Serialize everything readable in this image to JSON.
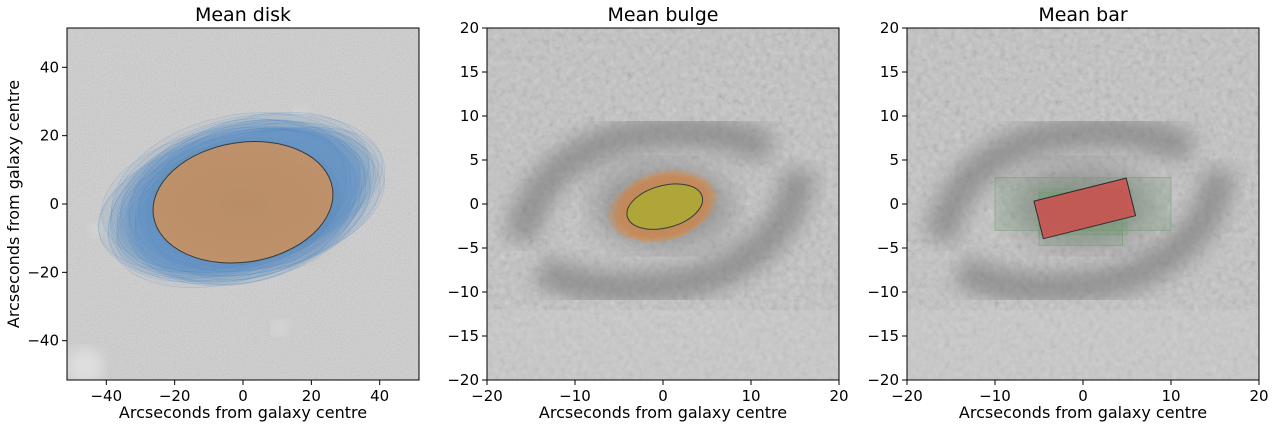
{
  "chart_data": [
    {
      "type": "image-overlay",
      "title": "Mean disk",
      "xlabel": "Arcseconds from galaxy centre",
      "ylabel": "Arcseconds from galaxy centre",
      "xlim": [
        -51.5,
        51.5
      ],
      "ylim": [
        -51.5,
        51.5
      ],
      "xticks": [
        -40,
        -20,
        0,
        20,
        40
      ],
      "yticks": [
        -40,
        -20,
        0,
        20,
        40
      ],
      "grid": false,
      "image": "galaxy cutout, grey",
      "shapes": [
        {
          "kind": "ellipse-cloud",
          "role": "individual disks",
          "color": "#4f8cc9",
          "cx": 0,
          "cy": 1,
          "rx": 38,
          "ry": 21,
          "angle": 14
        },
        {
          "kind": "ellipse",
          "role": "mean disk",
          "color": "#e0924c",
          "cx": 0,
          "cy": 0.5,
          "rx": 26.5,
          "ry": 17.5,
          "angle": 9
        }
      ]
    },
    {
      "type": "image-overlay",
      "title": "Mean bulge",
      "xlabel": "Arcseconds from galaxy centre",
      "ylabel": "",
      "xlim": [
        -20,
        20
      ],
      "ylim": [
        -20,
        20
      ],
      "xticks": [
        -20,
        -10,
        0,
        10,
        20
      ],
      "yticks": [
        -20,
        -15,
        -10,
        -5,
        0,
        5,
        10,
        15,
        20
      ],
      "grid": false,
      "image": "galaxy cutout, grey",
      "shapes": [
        {
          "kind": "ellipse-cloud",
          "role": "individual bulges",
          "color": "#e0924c",
          "cx": 0,
          "cy": -0.3,
          "rx": 5.6,
          "ry": 3.4,
          "angle": 15
        },
        {
          "kind": "ellipse",
          "role": "mean bulge",
          "color": "#a8b22c",
          "cx": 0.2,
          "cy": -0.3,
          "rx": 4.4,
          "ry": 2.4,
          "angle": 15
        }
      ]
    },
    {
      "type": "image-overlay",
      "title": "Mean bar",
      "xlabel": "Arcseconds from galaxy centre",
      "ylabel": "",
      "xlim": [
        -20,
        20
      ],
      "ylim": [
        -20,
        20
      ],
      "xticks": [
        -20,
        -10,
        0,
        10,
        20
      ],
      "yticks": [
        -20,
        -15,
        -10,
        -5,
        0,
        5,
        10,
        15,
        20
      ],
      "grid": false,
      "image": "galaxy cutout, grey",
      "shapes": [
        {
          "kind": "rect-cloud",
          "role": "individual bars",
          "color": "#6f9a6f",
          "rects": [
            [
              -10,
              -3,
              10,
              3
            ],
            [
              -5,
              -4.7,
              4.5,
              1.7
            ],
            [
              -5,
              -3.5,
              5,
              1.3
            ]
          ]
        },
        {
          "kind": "rotated-rect",
          "role": "mean bar",
          "color": "#d44848",
          "cx": 0.2,
          "cy": -0.5,
          "w": 10.8,
          "h": 4.4,
          "angle": 14
        }
      ]
    }
  ]
}
